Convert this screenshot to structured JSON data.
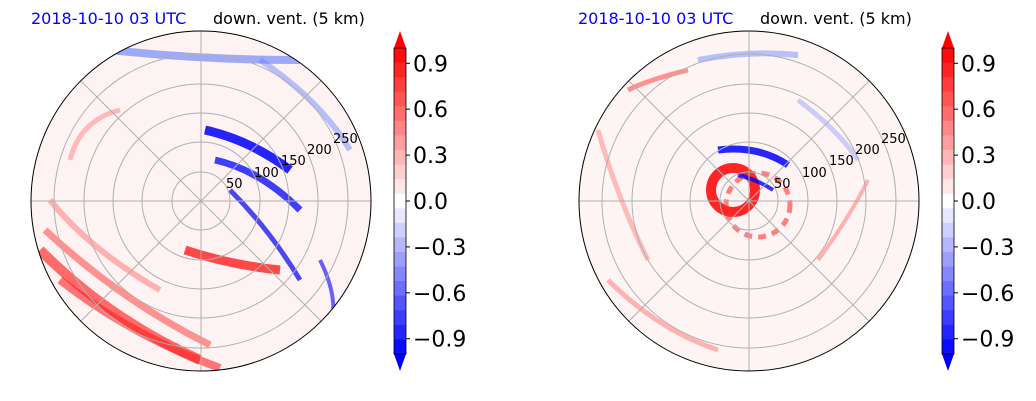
{
  "colors": {
    "title_left": "#0000ff",
    "title_right": "#000000",
    "negative_max": "#0000ff",
    "positive_max": "#ff0000",
    "neutral": "#ffffff",
    "grid": "#b0b0b0"
  },
  "chart_data": [
    {
      "type": "heatmap",
      "projection": "polar",
      "title_left": "2018-10-10 03 UTC",
      "title_right": "down. vent. (5 km)",
      "radial_tick_labels": [
        "50",
        "100",
        "150",
        "200",
        "250"
      ],
      "radial_ticks": [
        50,
        100,
        150,
        200,
        250
      ],
      "radial_limit": 290,
      "grid": true,
      "colorbar": {
        "min": -1.0,
        "max": 1.0,
        "ticks": [
          -0.9,
          -0.6,
          -0.3,
          0.0,
          0.3,
          0.6,
          0.9
        ],
        "tick_labels": [
          "−0.9",
          "−0.6",
          "−0.3",
          "0.0",
          "0.3",
          "0.6",
          "0.9"
        ],
        "colormap": "bwr",
        "extend": "both",
        "levels": 21
      }
    },
    {
      "type": "heatmap",
      "projection": "polar",
      "title_left": "2018-10-10 03 UTC",
      "title_right": "down. vent. (5 km)",
      "radial_tick_labels": [
        "50",
        "100",
        "150",
        "200",
        "250"
      ],
      "radial_ticks": [
        50,
        100,
        150,
        200,
        250
      ],
      "radial_limit": 290,
      "grid": true,
      "colorbar": {
        "min": -1.0,
        "max": 1.0,
        "ticks": [
          -0.9,
          -0.6,
          -0.3,
          0.0,
          0.3,
          0.6,
          0.9
        ],
        "tick_labels": [
          "−0.9",
          "−0.6",
          "−0.3",
          "0.0",
          "0.3",
          "0.6",
          "0.9"
        ],
        "colormap": "bwr",
        "extend": "both",
        "levels": 21
      }
    }
  ]
}
